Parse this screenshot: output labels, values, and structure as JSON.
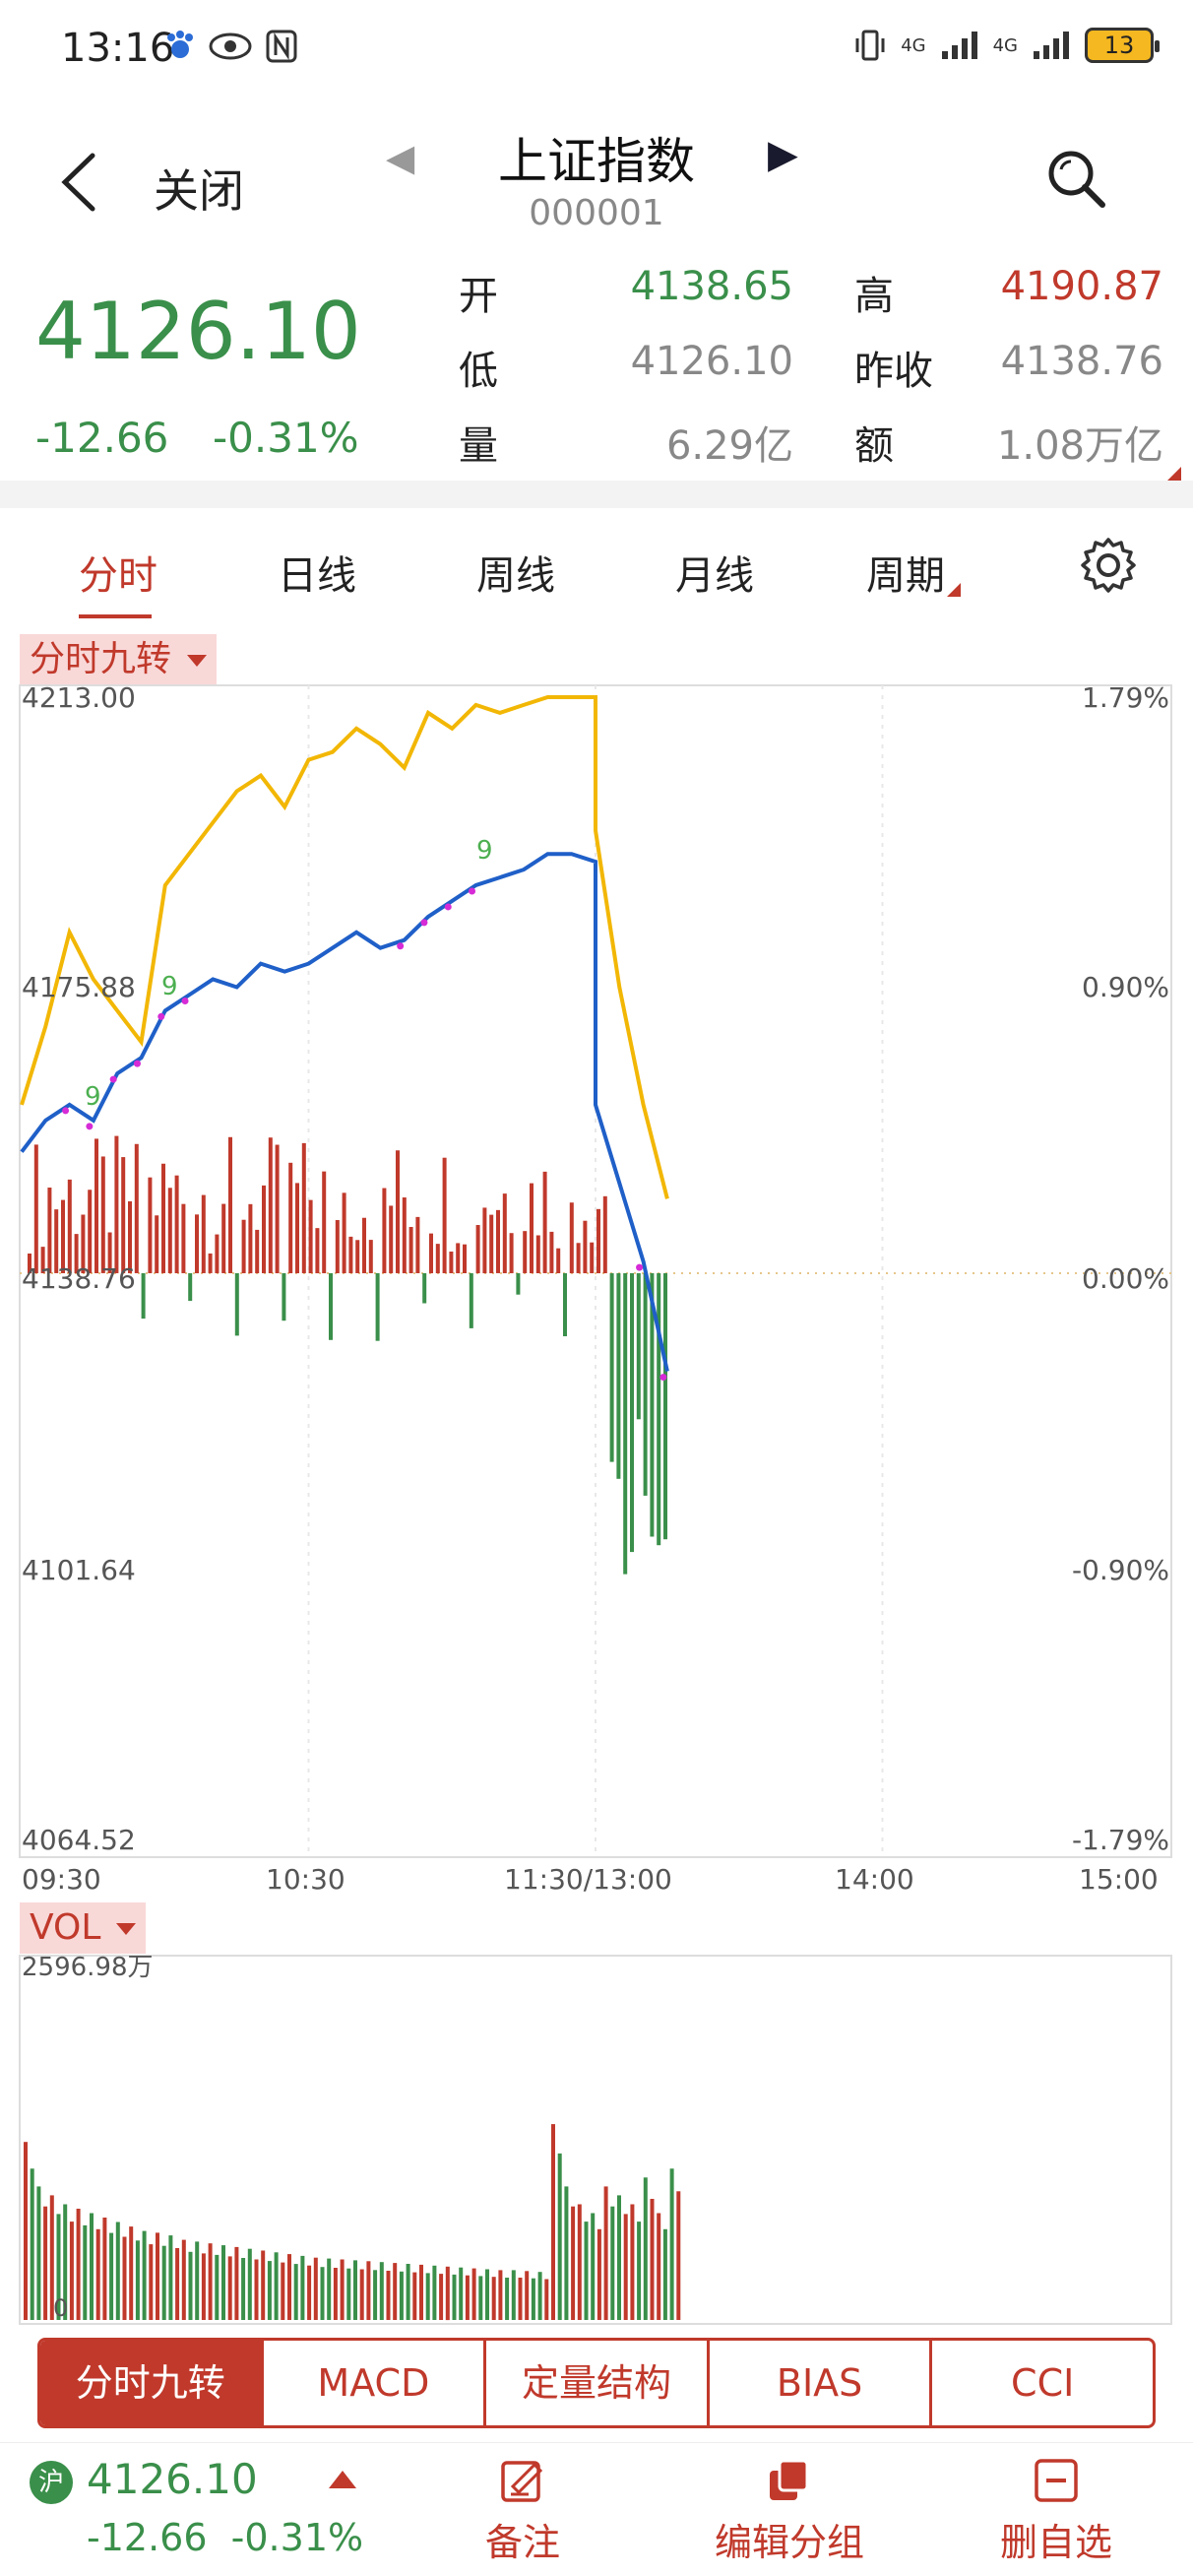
{
  "status_bar": {
    "time": "13:16",
    "network": "4G",
    "battery": "13"
  },
  "header": {
    "close_label": "关闭",
    "title": "上证指数",
    "code": "000001"
  },
  "quote": {
    "price": "4126.10",
    "change": "-12.66",
    "change_pct": "-0.31%",
    "open_label": "开",
    "open": "4138.65",
    "high_label": "高",
    "high": "4190.87",
    "low_label": "低",
    "low": "4126.10",
    "prev_close_label": "昨收",
    "prev_close": "4138.76",
    "volume_label": "量",
    "volume": "6.29亿",
    "amount_label": "额",
    "amount": "1.08万亿"
  },
  "period_tabs": [
    "分时",
    "日线",
    "周线",
    "月线",
    "周期"
  ],
  "active_period": "分时",
  "main_chart": {
    "indicator_chip": "分时九转",
    "y_left_labels": [
      "4213.00",
      "4175.88",
      "4138.76",
      "4101.64",
      "4064.52"
    ],
    "y_right_labels": [
      "1.79%",
      "0.90%",
      "0.00%",
      "-0.90%",
      "-1.79%"
    ],
    "x_labels": [
      "09:30",
      "10:30",
      "11:30/13:00",
      "14:00",
      "15:00"
    ],
    "nine_marker": "9"
  },
  "chart_data": {
    "type": "line",
    "title": "",
    "xlabel": "",
    "ylabel": "",
    "ylim": [
      4064.52,
      4213.0
    ],
    "x_ticks": [
      "09:30",
      "10:30",
      "11:30/13:00",
      "14:00",
      "15:00"
    ],
    "series": [
      {
        "x": [
          "09:30",
          "09:35",
          "09:40",
          "09:45",
          "09:50",
          "09:55",
          "10:00",
          "10:05",
          "10:10",
          "10:15",
          "10:20",
          "10:25",
          "10:30",
          "10:35",
          "10:40",
          "10:45",
          "10:50",
          "10:55",
          "11:00",
          "11:05",
          "11:10",
          "11:15",
          "11:20",
          "11:25",
          "11:30",
          "13:00",
          "13:05",
          "13:10",
          "13:15"
        ],
        "values": [
          4160,
          4170,
          4182,
          4176,
          4172,
          4168,
          4188,
          4192,
          4196,
          4200,
          4202,
          4198,
          4204,
          4205,
          4208,
          4206,
          4203,
          4210,
          4208,
          4211,
          4210,
          4211,
          4212,
          4212,
          4212,
          4195,
          4175,
          4160,
          4148
        ]
      },
      {
        "x": [
          "09:30",
          "09:35",
          "09:40",
          "09:45",
          "09:50",
          "09:55",
          "10:00",
          "10:05",
          "10:10",
          "10:15",
          "10:20",
          "10:25",
          "10:30",
          "10:35",
          "10:40",
          "10:45",
          "10:50",
          "10:55",
          "11:00",
          "11:05",
          "11:10",
          "11:15",
          "11:20",
          "11:25",
          "11:30",
          "13:00",
          "13:05",
          "13:10",
          "13:15"
        ],
        "values": [
          4154,
          4158,
          4160,
          4158,
          4164,
          4166,
          4172,
          4174,
          4176,
          4175,
          4178,
          4177,
          4178,
          4180,
          4182,
          4180,
          4181,
          4184,
          4186,
          4188,
          4189,
          4190,
          4192,
          4192,
          4191,
          4160,
          4150,
          4140,
          4126
        ]
      }
    ],
    "volume_bars": {
      "ymax": "2596.98万",
      "values": [
        2000,
        1500,
        1400,
        1300,
        1250,
        1200,
        1150,
        1100,
        1050,
        1000,
        980,
        950,
        900,
        880,
        860,
        840,
        820,
        800,
        780,
        760,
        740,
        720,
        700,
        690,
        680,
        670,
        660,
        650,
        640,
        630,
        620,
        610,
        600,
        590,
        580,
        570,
        560,
        560,
        550,
        540,
        2200,
        1500,
        1300,
        1200,
        1500,
        1400,
        1300,
        1600,
        1200,
        1700
      ]
    }
  },
  "vol_panel": {
    "indicator_chip": "VOL",
    "max_label": "2596.98万",
    "zero_label": "0"
  },
  "indicator_tabs": [
    "分时九转",
    "MACD",
    "定量结构",
    "BIAS",
    "CCI"
  ],
  "active_indicator": "分时九转",
  "footer": {
    "market_badge": "沪",
    "price": "4126.10",
    "change": "-12.66",
    "change_pct": "-0.31%",
    "note_label": "备注",
    "edit_group_label": "编辑分组",
    "remove_label": "删自选"
  },
  "colors": {
    "green": "#3a8f4a",
    "red": "#c0392b",
    "yellow_line": "#f2b705",
    "blue_line": "#1f5fc8"
  }
}
